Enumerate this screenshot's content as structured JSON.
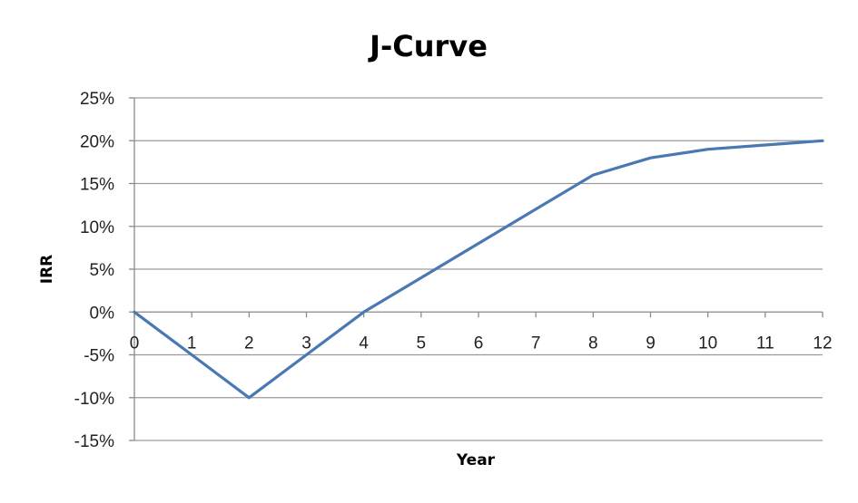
{
  "chart_data": {
    "type": "line",
    "title": "J-Curve",
    "xlabel": "Year",
    "ylabel": "IRR",
    "x": [
      0,
      1,
      2,
      3,
      4,
      5,
      6,
      7,
      8,
      9,
      10,
      11,
      12
    ],
    "series": [
      {
        "values": [
          0,
          -5,
          -10,
          -5,
          0,
          4,
          8,
          12,
          16,
          18,
          19,
          19.5,
          20
        ],
        "color": "#4a78b2"
      }
    ],
    "xlim": [
      0,
      12
    ],
    "ylim": [
      -15,
      25
    ],
    "x_ticks": [
      "0",
      "1",
      "2",
      "3",
      "4",
      "5",
      "6",
      "7",
      "8",
      "9",
      "10",
      "11",
      "12"
    ],
    "y_ticks": [
      "25%",
      "20%",
      "15%",
      "10%",
      "5%",
      "0%",
      "-5%",
      "-10%",
      "-15%"
    ],
    "y_tick_values": [
      25,
      20,
      15,
      10,
      5,
      0,
      -5,
      -10,
      -15
    ],
    "grid": true,
    "legend": "none"
  }
}
